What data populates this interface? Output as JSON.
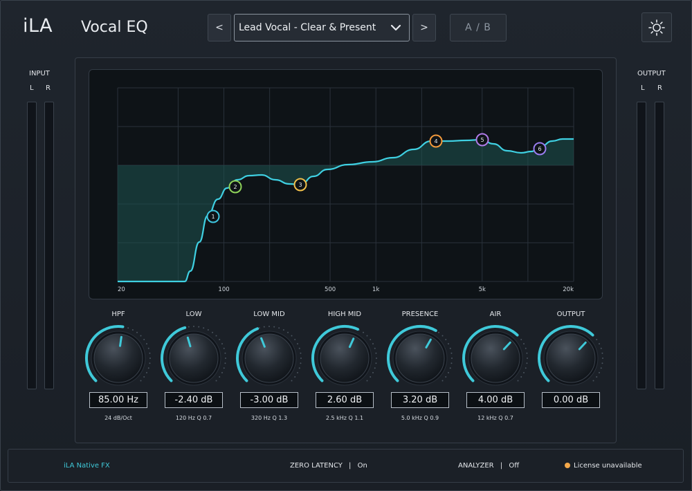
{
  "header": {
    "brand": "iLA",
    "product": "Vocal EQ",
    "prev_label": "<",
    "next_label": ">",
    "preset": "Lead Vocal - Clear & Present",
    "ab_label": "A / B",
    "settings_icon": "sun-icon"
  },
  "meters": {
    "input": {
      "title": "INPUT",
      "left": "L",
      "right": "R"
    },
    "output": {
      "title": "OUTPUT",
      "left": "L",
      "right": "R"
    }
  },
  "graph": {
    "freq_labels": [
      "20",
      "100",
      "500",
      "1k",
      "5k",
      "20k"
    ],
    "bands": [
      {
        "id": "1",
        "freq_hz": 85,
        "color": "#3ec6e0"
      },
      {
        "id": "2",
        "freq_hz": 120,
        "color": "#8fd35a"
      },
      {
        "id": "3",
        "freq_hz": 320,
        "color": "#f1c04a"
      },
      {
        "id": "4",
        "freq_hz": 2500,
        "color": "#f39a3c"
      },
      {
        "id": "5",
        "freq_hz": 5000,
        "color": "#b07be8"
      },
      {
        "id": "6",
        "freq_hz": 12000,
        "color": "#9a7df0"
      }
    ],
    "colors": {
      "curve": "#3fd0e2",
      "fill": "#1d5450"
    }
  },
  "knobs": [
    {
      "label": "HPF",
      "value": "85.00 Hz",
      "sub": "24 dB/Oct",
      "level": 0.53
    },
    {
      "label": "LOW",
      "value": "-2.40 dB",
      "sub": "120 Hz  Q 0.7",
      "level": 0.44
    },
    {
      "label": "LOW MID",
      "value": "-3.00 dB",
      "sub": "320 Hz  Q 1.3",
      "level": 0.42
    },
    {
      "label": "HIGH MID",
      "value": "2.60 dB",
      "sub": "2.5 kHz  Q 1.1",
      "level": 0.59
    },
    {
      "label": "PRESENCE",
      "value": "3.20 dB",
      "sub": "5.0 kHz  Q 0.9",
      "level": 0.61
    },
    {
      "label": "AIR",
      "value": "4.00 dB",
      "sub": "12 kHz  Q 0.7",
      "level": 0.66
    },
    {
      "label": "OUTPUT",
      "value": "0.00 dB",
      "sub": "",
      "level": 0.66
    }
  ],
  "footer": {
    "brand": "iLA  Native FX",
    "latency_label": "ZERO LATENCY",
    "latency_value": "On",
    "analyzer_label": "ANALYZER",
    "analyzer_value": "Off",
    "separator": "|",
    "license": "License unavailable",
    "license_color": "#f4a84a"
  },
  "colors": {
    "accent": "#3fc9d9",
    "background": "#1c2128"
  }
}
